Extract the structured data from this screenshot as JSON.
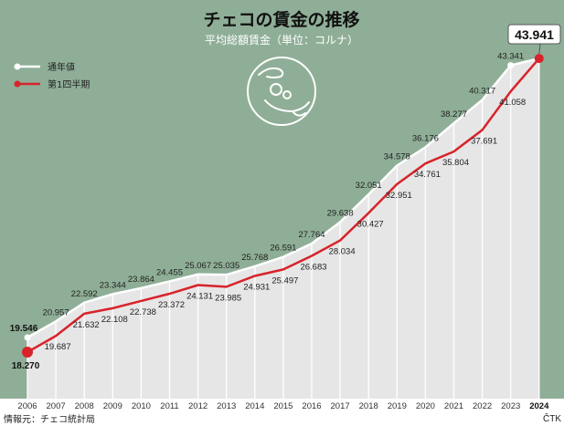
{
  "chart_data": {
    "type": "line",
    "title": "チェコの賃金の推移",
    "subtitle": "平均総額賃金（単位：コルナ）",
    "x": [
      "2006",
      "2007",
      "2008",
      "2009",
      "2010",
      "2011",
      "2012",
      "2013",
      "2014",
      "2015",
      "2016",
      "2017",
      "2018",
      "2019",
      "2020",
      "2021",
      "2022",
      "2023",
      "2024"
    ],
    "series": [
      {
        "name": "通年値",
        "color": "#ffffff",
        "values": [
          19.546,
          20.957,
          22.592,
          23.344,
          23.864,
          24.455,
          25.067,
          25.035,
          25.768,
          26.591,
          27.764,
          29.638,
          32.051,
          34.578,
          36.176,
          38.277,
          40.317,
          43.341,
          43.941
        ],
        "labels": [
          "19.546",
          "20.957",
          "22.592",
          "23.344",
          "23.864",
          "24.455",
          "25.067",
          "25.035",
          "25.768",
          "26.591",
          "27.764",
          "29.638",
          "32.051",
          "34.578",
          "36.176",
          "38.277",
          "40.317",
          "43.341",
          "43.941"
        ]
      },
      {
        "name": "第1四半期",
        "color": "#d8232a",
        "values": [
          18.27,
          19.687,
          21.632,
          22.108,
          22.738,
          23.372,
          24.131,
          23.985,
          24.931,
          25.497,
          26.683,
          28.034,
          30.427,
          32.951,
          34.761,
          35.804,
          37.691,
          41.058,
          43.941
        ],
        "labels": [
          "18.270",
          "19.687",
          "21.632",
          "22.108",
          "22.738",
          "23.372",
          "24.131",
          "23.985",
          "24.931",
          "25.497",
          "26.683",
          "28.034",
          "30.427",
          "32.951",
          "34.761",
          "35.804",
          "37.691",
          "41.058",
          "43.941"
        ]
      }
    ],
    "highlight_value": "43.941",
    "ylim": [
      15,
      45
    ],
    "colors": {
      "background": "#8fae97",
      "area": "#e6e6e6",
      "grid": "#ffffff",
      "accent": "#d8232a"
    },
    "grid": true,
    "legend_position": "top-left",
    "source": "情報元：チェコ統計局",
    "brand": "ČTK",
    "icon": "hands-money-icon"
  }
}
